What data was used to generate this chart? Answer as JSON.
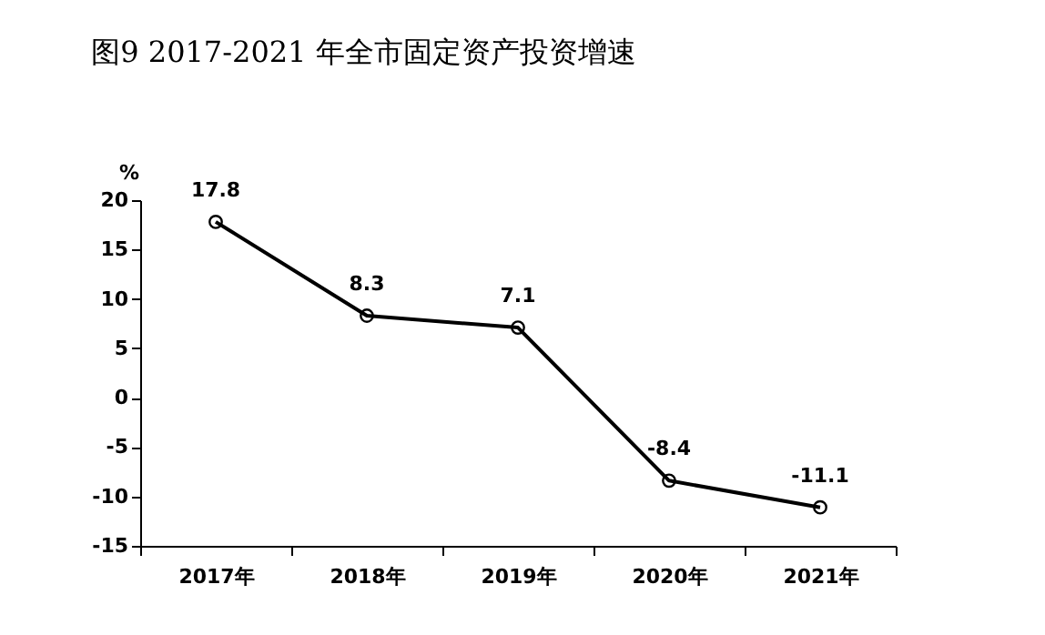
{
  "chart_data": {
    "type": "line",
    "title": "图9   2017-2021 年全市固定资产投资增速",
    "ylabel": "%",
    "categories": [
      "2017年",
      "2018年",
      "2019年",
      "2020年",
      "2021年"
    ],
    "series": [
      {
        "color": "#000000",
        "values": [
          17.8,
          8.3,
          7.1,
          -8.4,
          -11.1
        ]
      }
    ],
    "ylim": [
      -15,
      20
    ],
    "yticks": [
      -15,
      -10,
      -5,
      0,
      5,
      10,
      15,
      20
    ],
    "marker": "circle",
    "data_labels": true,
    "grid": false
  }
}
